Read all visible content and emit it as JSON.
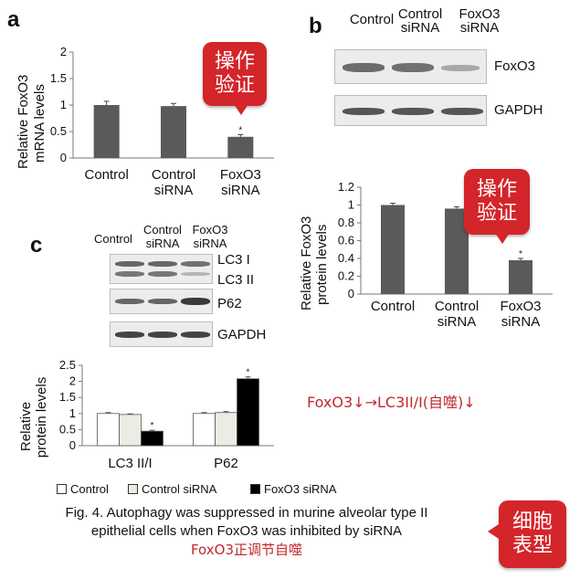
{
  "panel_a": {
    "letter": "a",
    "ylabel_line1": "Relative FoxO3",
    "ylabel_line2": "mRNA levels",
    "chart_data": {
      "type": "bar",
      "categories": [
        [
          "Control"
        ],
        [
          "Control",
          "siRNA"
        ],
        [
          "FoxO3",
          "siRNA"
        ]
      ],
      "values": [
        1.0,
        0.98,
        0.4
      ],
      "errors": [
        0.07,
        0.05,
        0.04
      ],
      "significance": [
        "",
        "",
        "*"
      ],
      "yticks": [
        "0",
        "0.5",
        "1",
        "1.5",
        "2"
      ],
      "ylim": [
        0,
        2
      ],
      "bar_color": "#5a5a5a",
      "ylabel": "Relative FoxO3 mRNA levels"
    }
  },
  "panel_b": {
    "letter": "b",
    "headers": [
      [
        "Control"
      ],
      [
        "Control",
        "siRNA"
      ],
      [
        "FoxO3",
        "siRNA"
      ]
    ],
    "blot_labels": [
      "FoxO3",
      "GAPDH"
    ],
    "ylabel_line1": "Relative FoxO3",
    "ylabel_line2": "protein levels",
    "chart_data": {
      "type": "bar",
      "categories": [
        [
          "Control"
        ],
        [
          "Control",
          "siRNA"
        ],
        [
          "FoxO3",
          "siRNA"
        ]
      ],
      "values": [
        1.0,
        0.96,
        0.38
      ],
      "errors": [
        0.02,
        0.02,
        0.02
      ],
      "significance": [
        "",
        "",
        "*"
      ],
      "yticks": [
        "0",
        "0.2",
        "0.4",
        "0.6",
        "0.8",
        "1",
        "1.2"
      ],
      "ylim": [
        0,
        1.2
      ],
      "bar_color": "#5a5a5a",
      "ylabel": "Relative FoxO3 protein levels"
    }
  },
  "panel_c": {
    "letter": "c",
    "headers": [
      [
        "Control"
      ],
      [
        "Control",
        "siRNA"
      ],
      [
        "FoxO3",
        "siRNA"
      ]
    ],
    "blot_labels": [
      "LC3 I",
      "LC3 II",
      "P62",
      "GAPDH"
    ],
    "ylabel_line1": "Relative",
    "ylabel_line2": "protein levels",
    "chart_data": {
      "type": "bar",
      "categories": [
        "LC3 II/I",
        "P62"
      ],
      "series": [
        {
          "name": "Control",
          "values": [
            1.0,
            1.0
          ],
          "errors": [
            0.03,
            0.03
          ],
          "color": "#ffffff"
        },
        {
          "name": "Control siRNA",
          "values": [
            0.97,
            1.03
          ],
          "errors": [
            0.02,
            0.03
          ],
          "color": "#ecece4"
        },
        {
          "name": "FoxO3 siRNA",
          "values": [
            0.45,
            2.08
          ],
          "errors": [
            0.03,
            0.06
          ],
          "color": "#000000"
        }
      ],
      "significance": [
        [
          "",
          "",
          "*"
        ],
        [
          "",
          "",
          "*"
        ]
      ],
      "yticks": [
        "0",
        "0.5",
        "1",
        "1.5",
        "2",
        "2.5"
      ],
      "ylim": [
        0,
        2.5
      ],
      "ylabel": "Relative protein levels"
    },
    "legend": [
      "Control",
      "Control siRNA",
      "FoxO3 siRNA"
    ]
  },
  "callouts": {
    "a": [
      "操作",
      "验证"
    ],
    "b": [
      "操作",
      "验证"
    ],
    "caption": [
      "细胞",
      "表型"
    ]
  },
  "note": "FoxO3↓→LC3II/I(自噬)↓",
  "caption": {
    "line1": "Fig. 4. Autophagy was suppressed in murine alveolar type II",
    "line2": "epithelial cells when FoxO3 was inhibited by siRNA",
    "line3": "FoxO3正调节自噬"
  },
  "colors": {
    "accent_red": "#d4252a",
    "text_red": "#c0292e",
    "bar_grey": "#5a5a5a"
  }
}
